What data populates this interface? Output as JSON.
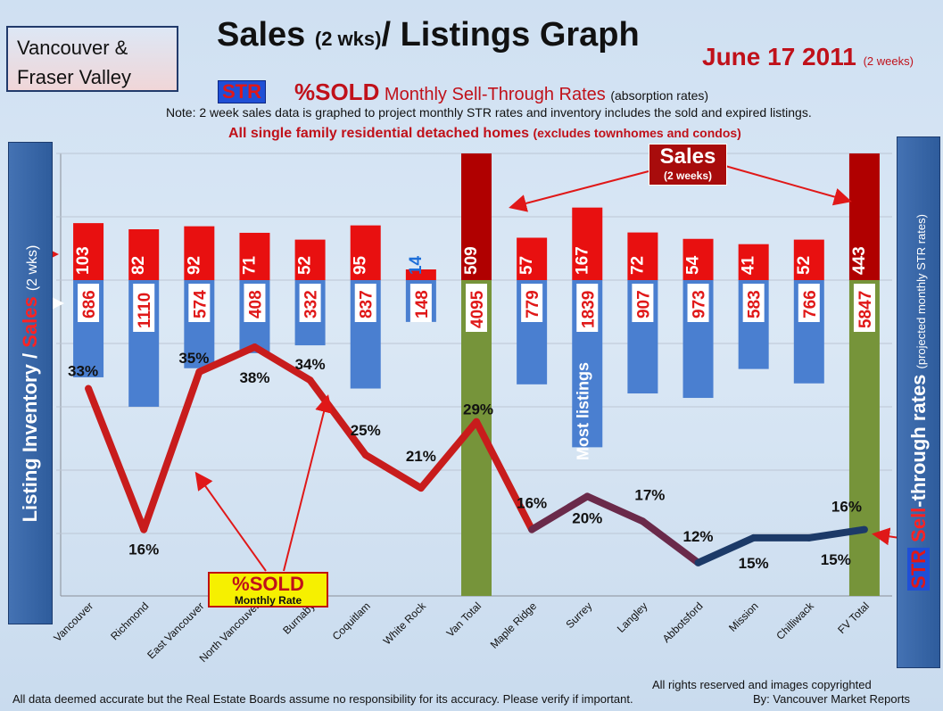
{
  "header": {
    "region_line1": "Vancouver &",
    "region_line2": "Fraser Valley",
    "title_main": "Sales",
    "title_small": "(2 wks)",
    "title_rest": "/ Listings Graph",
    "date_main": "June 17 2011",
    "date_small": "(2 weeks)",
    "str_badge": "STR",
    "sold_word": "%SOLD",
    "str_desc": "Monthly Sell-Through Rates",
    "str_desc_small": "(absorption rates)",
    "note": "Note: 2 week sales data is graphed to project monthly STR rates and inventory includes the sold and expired listings.",
    "subtitle_main": "All single family residential detached homes",
    "subtitle_small": "(excludes townhomes and condos)"
  },
  "side_left": {
    "part1": "Listing Inventory",
    "part2": " / ",
    "part3": "Sales",
    "part4": "(2 wks)"
  },
  "side_right": {
    "str": "STR",
    "red": " Sell",
    "white": "-through rates",
    "small": "(projected monthly STR rates)"
  },
  "callouts": {
    "sales_big": "Sales",
    "sales_small": "(2 weeks)",
    "sold_big": "%SOLD",
    "sold_small": "Monthly Rate",
    "most_listings": "Most listings"
  },
  "footer": {
    "left": "All data deemed accurate but the Real Estate Boards assume no responsibility for its accuracy.  Please verify if important.",
    "right1": "All rights reserved and  images copyrighted",
    "right2": "By: Vancouver Market Reports"
  },
  "colors": {
    "sales": "#e81010",
    "sales_total": "#b00000",
    "listing": "#4a7fd0",
    "listing_total": "#76943a",
    "line_high": "#c81c1c",
    "line_low": "#1c3a68"
  },
  "chart_data": {
    "type": "bar",
    "categories": [
      "Vancouver",
      "Richmond",
      "East Vancouver",
      "North Vancouver",
      "Burnaby",
      "Coquitlam",
      "White Rock",
      "Van Total",
      "Maple Ridge",
      "Surrey",
      "Langley",
      "Abbotsford",
      "Mission",
      "Chilliwack",
      "FV Total"
    ],
    "series": [
      {
        "name": "Sales",
        "values": [
          103,
          82,
          92,
          71,
          52,
          95,
          14,
          509,
          57,
          167,
          72,
          54,
          41,
          52,
          443
        ]
      },
      {
        "name": "Listings",
        "values": [
          686,
          1110,
          574,
          408,
          332,
          837,
          148,
          4095,
          779,
          1839,
          907,
          973,
          583,
          766,
          5847
        ]
      },
      {
        "name": "%SOLD",
        "values": [
          33,
          16,
          35,
          38,
          34,
          25,
          21,
          29,
          16,
          20,
          17,
          12,
          15,
          15,
          16
        ]
      }
    ],
    "totals": [
      "Van Total",
      "FV Total"
    ],
    "unit": "%"
  }
}
